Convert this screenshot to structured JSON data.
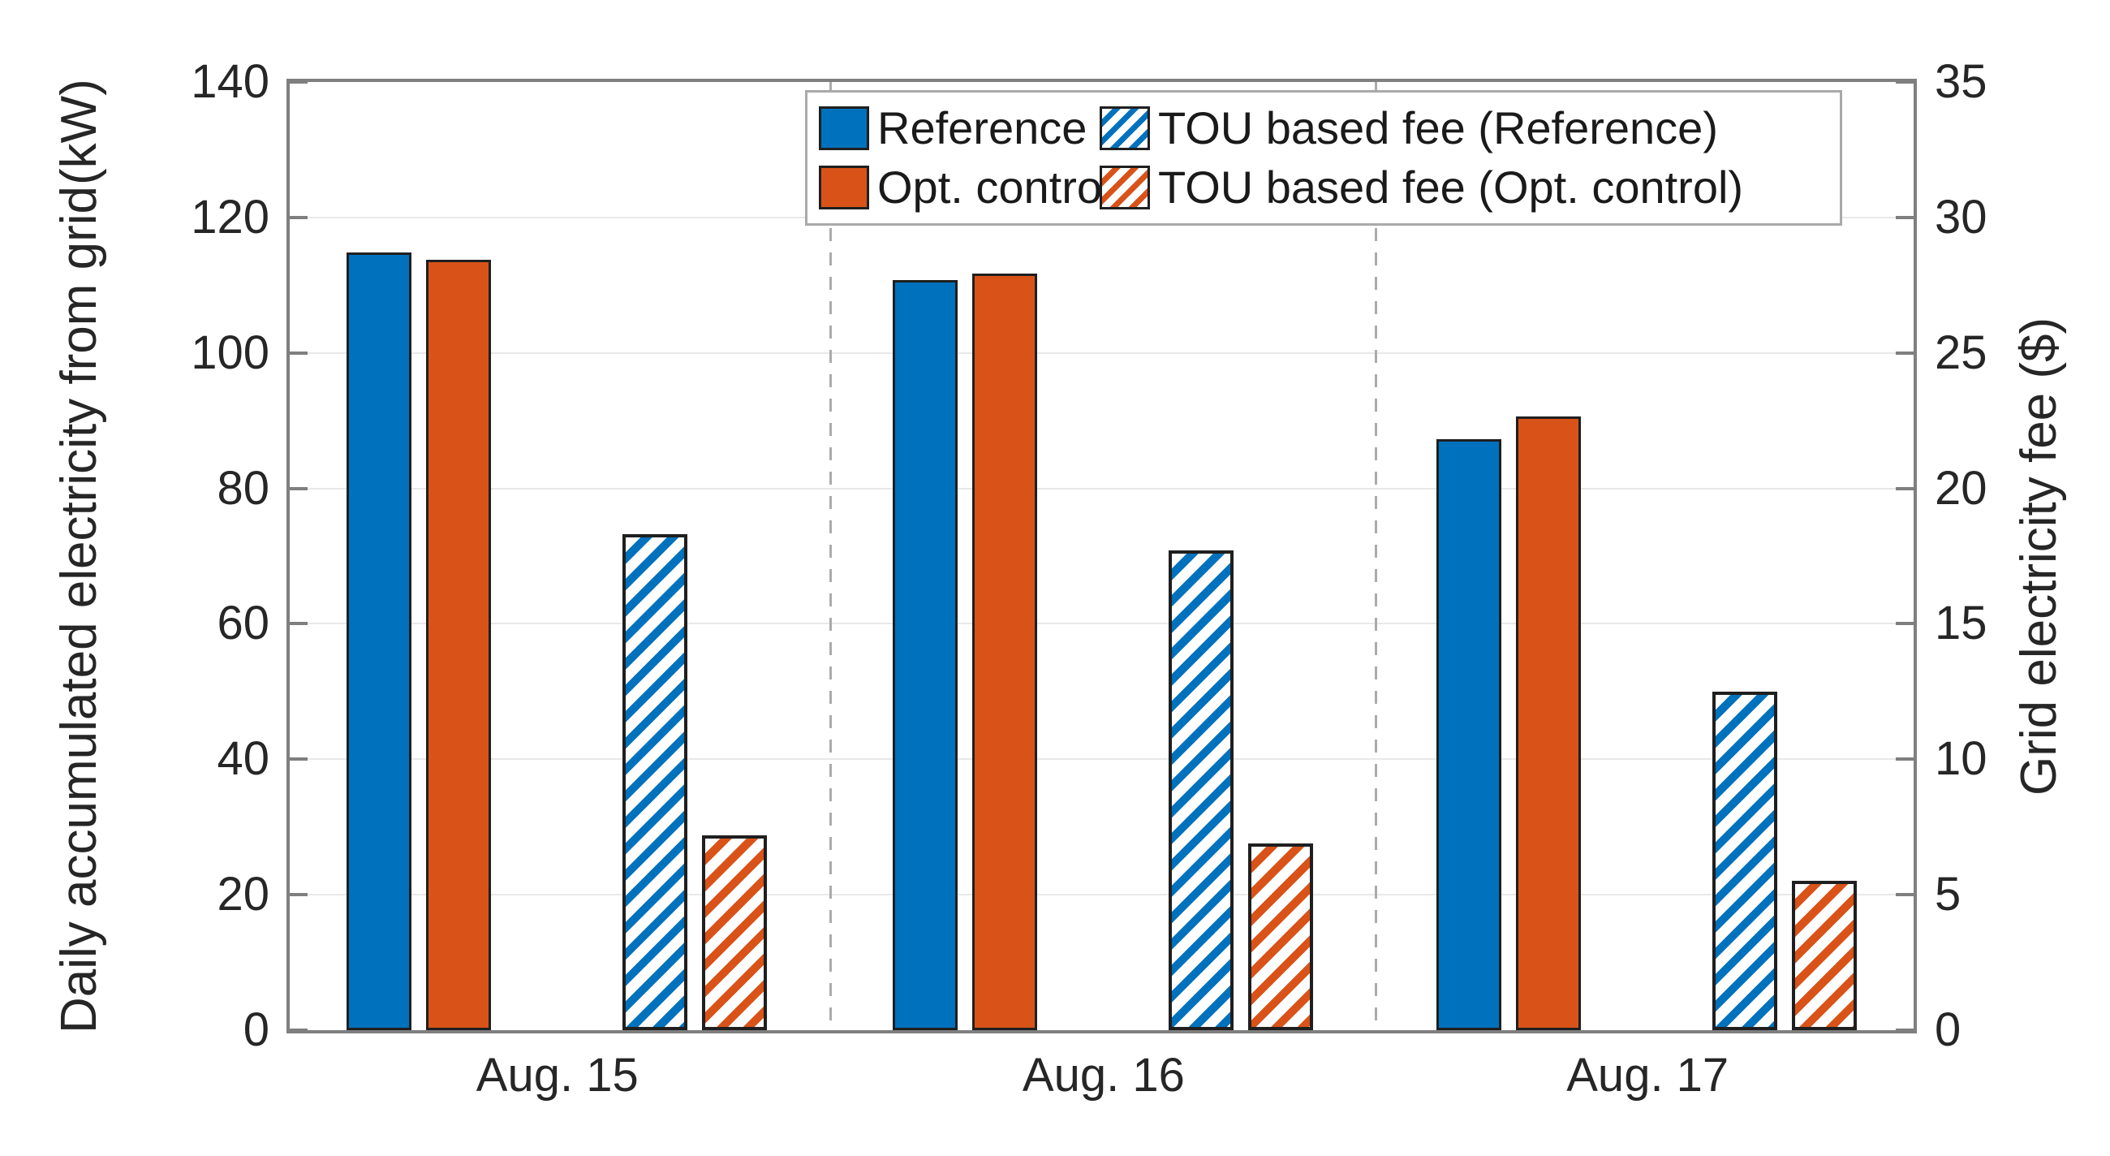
{
  "colors": {
    "bar_blue": "#0072BD",
    "bar_orange": "#D95319",
    "axis_line": "#7f7f7f",
    "grid_line": "#e8e8e8",
    "separator_line": "#ababab",
    "tick_text": "#262626",
    "bar_edge": "#1f1f1f",
    "legend_border": "#a9a9a9"
  },
  "chart_data": {
    "type": "bar",
    "title": "",
    "categories": [
      "Aug. 15",
      "Aug. 16",
      "Aug. 17"
    ],
    "series": [
      {
        "name": "Reference",
        "axis": "left",
        "pattern": "solid",
        "color": "#0072BD",
        "unit": "kW",
        "values": [
          114.8,
          110.7,
          87.3
        ]
      },
      {
        "name": "Opt. control",
        "axis": "left",
        "pattern": "solid",
        "color": "#D95319",
        "unit": "kW",
        "values": [
          113.7,
          111.7,
          90.6
        ]
      },
      {
        "name": "TOU based fee (Reference)",
        "axis": "right",
        "pattern": "hatch",
        "color": "#0072BD",
        "unit": "$",
        "values": [
          18.3,
          17.7,
          12.5
        ]
      },
      {
        "name": "TOU based fee (Opt. control)",
        "axis": "right",
        "pattern": "hatch",
        "color": "#D95319",
        "unit": "$",
        "values": [
          7.2,
          6.9,
          5.5
        ]
      }
    ],
    "left_axis": {
      "label_line1": "Daily accumulated electricity from grid",
      "label_line2": "(kW)",
      "min": 0,
      "max": 140,
      "ticks": [
        0,
        20,
        40,
        60,
        80,
        100,
        120,
        140
      ]
    },
    "right_axis": {
      "label": "Grid electricity fee ($)",
      "min": 0,
      "max": 35,
      "ticks": [
        0,
        5,
        10,
        15,
        20,
        25,
        30,
        35
      ]
    },
    "grid": {
      "horizontal": true,
      "vertical_group_separators": "dashed"
    },
    "legend": {
      "position": "top",
      "rows": 2,
      "columns": 2
    }
  }
}
